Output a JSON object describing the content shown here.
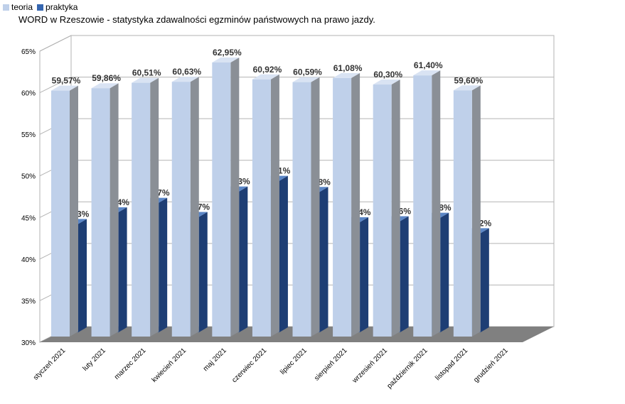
{
  "chart_data": {
    "type": "bar",
    "title": "WORD w Rzeszowie - statystyka zdawalności egzminów państwowych na prawo jazdy.",
    "categories": [
      "styczeń 2021",
      "luty 2021",
      "marzec 2021",
      "kwiecień 2021",
      "maj 2021",
      "czerwiec 2021",
      "lipiec 2021",
      "sierpień 2021",
      "wrzesień 2021",
      "październik 2021",
      "listopad 2021",
      "grudzień 2021"
    ],
    "series": [
      {
        "name": "teoria",
        "values": [
          59.57,
          59.86,
          60.51,
          60.63,
          62.95,
          60.92,
          60.59,
          61.08,
          60.3,
          61.4,
          59.6,
          null
        ],
        "labels": [
          "59,57%",
          "59,86%",
          "60,51%",
          "60,63%",
          "62,95%",
          "60,92%",
          "60,59%",
          "61,08%",
          "60,30%",
          "61,40%",
          "59,60%",
          ""
        ],
        "color": "#bfd0ea"
      },
      {
        "name": "praktyka",
        "values": [
          43.03,
          44.44,
          45.57,
          43.87,
          46.93,
          48.21,
          46.88,
          43.24,
          43.36,
          43.78,
          41.92,
          null
        ],
        "labels": [
          "43,03%",
          "44,44%",
          "45,57%",
          "43,87%",
          "46,93%",
          "48,21%",
          "46,88%",
          "43,24%",
          "43,36%",
          "43,78%",
          "41,92%",
          ""
        ],
        "color": "#3566b0"
      }
    ],
    "ylim": [
      30,
      65
    ],
    "yticks": [
      "30%",
      "35%",
      "40%",
      "45%",
      "50%",
      "55%",
      "60%",
      "65%"
    ],
    "three_d": true,
    "grid": true,
    "legend": "top-left"
  }
}
